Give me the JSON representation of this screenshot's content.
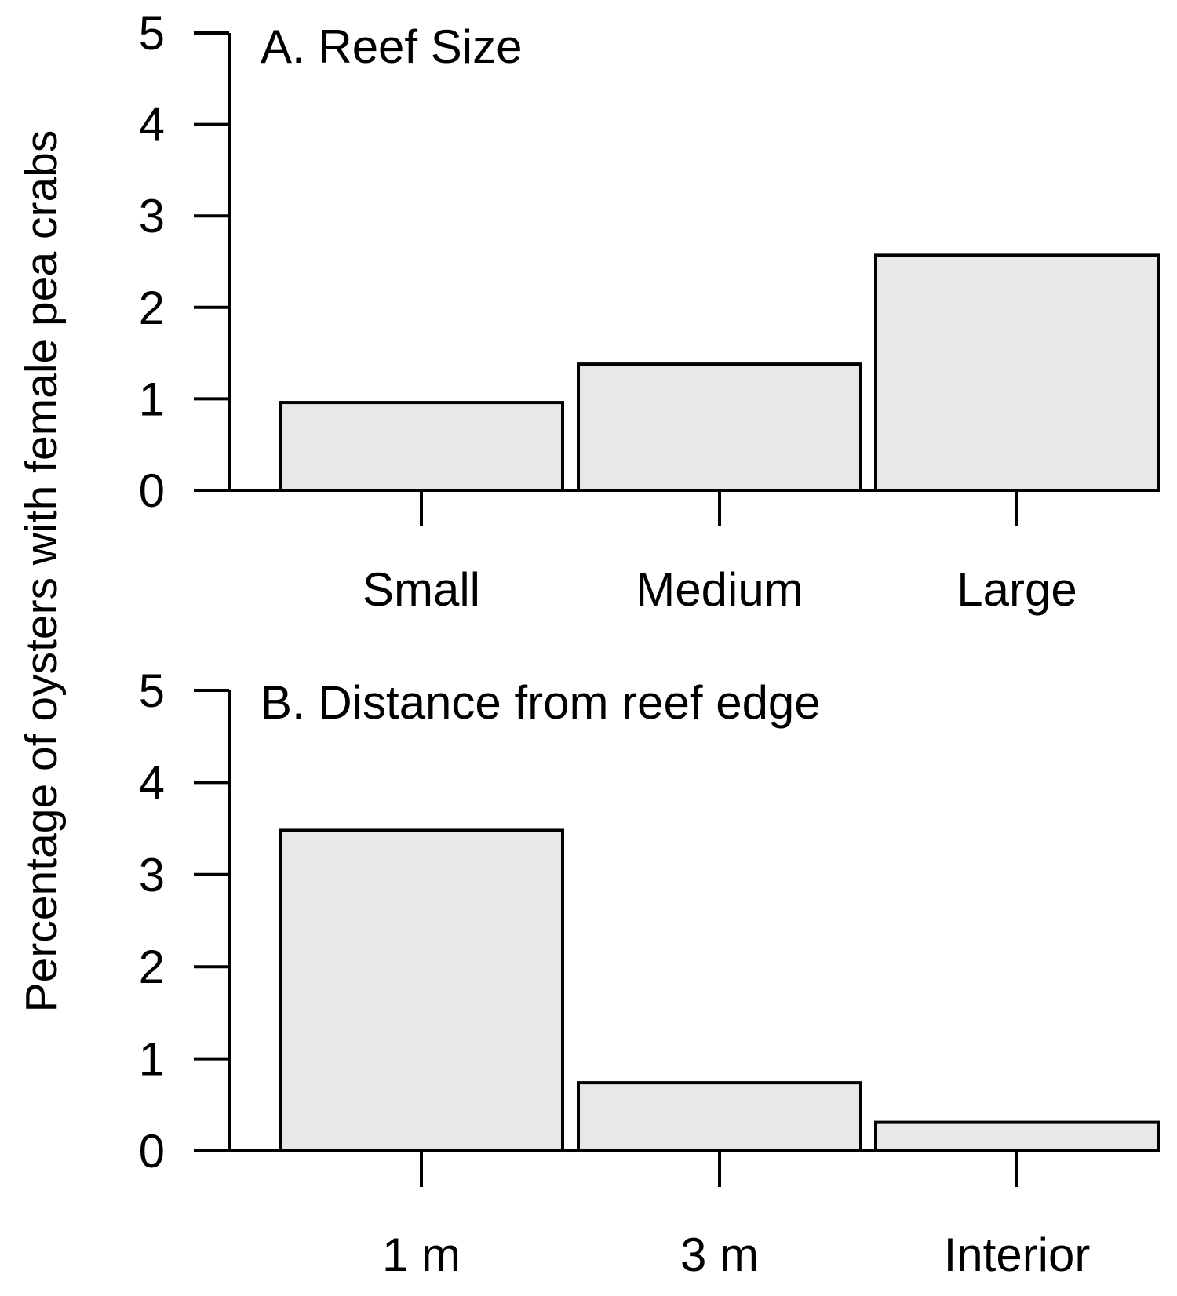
{
  "figure": {
    "ylabel": "Percentage of oysters with female pea crabs",
    "background_color": "#ffffff",
    "bar_fill_color": "#e8e8e8",
    "line_color": "#000000"
  },
  "chart_data": [
    {
      "type": "bar",
      "panel": "A",
      "title": "A. Reef Size",
      "categories": [
        "Small",
        "Medium",
        "Large"
      ],
      "values": [
        0.96,
        1.38,
        2.57
      ],
      "ylim": [
        0,
        5
      ],
      "yticks": [
        5,
        4,
        3,
        2,
        1,
        0
      ],
      "xlabel": "",
      "ylabel": "Percentage of oysters with female pea crabs",
      "grid": false,
      "legend": "none"
    },
    {
      "type": "bar",
      "panel": "B",
      "title": "B. Distance from reef edge",
      "categories": [
        "1 m",
        "3 m",
        "Interior"
      ],
      "values": [
        3.48,
        0.74,
        0.31
      ],
      "ylim": [
        0,
        5
      ],
      "yticks": [
        5,
        4,
        3,
        2,
        1,
        0
      ],
      "xlabel": "",
      "ylabel": "Percentage of oysters with female pea crabs",
      "grid": false,
      "legend": "none"
    }
  ]
}
